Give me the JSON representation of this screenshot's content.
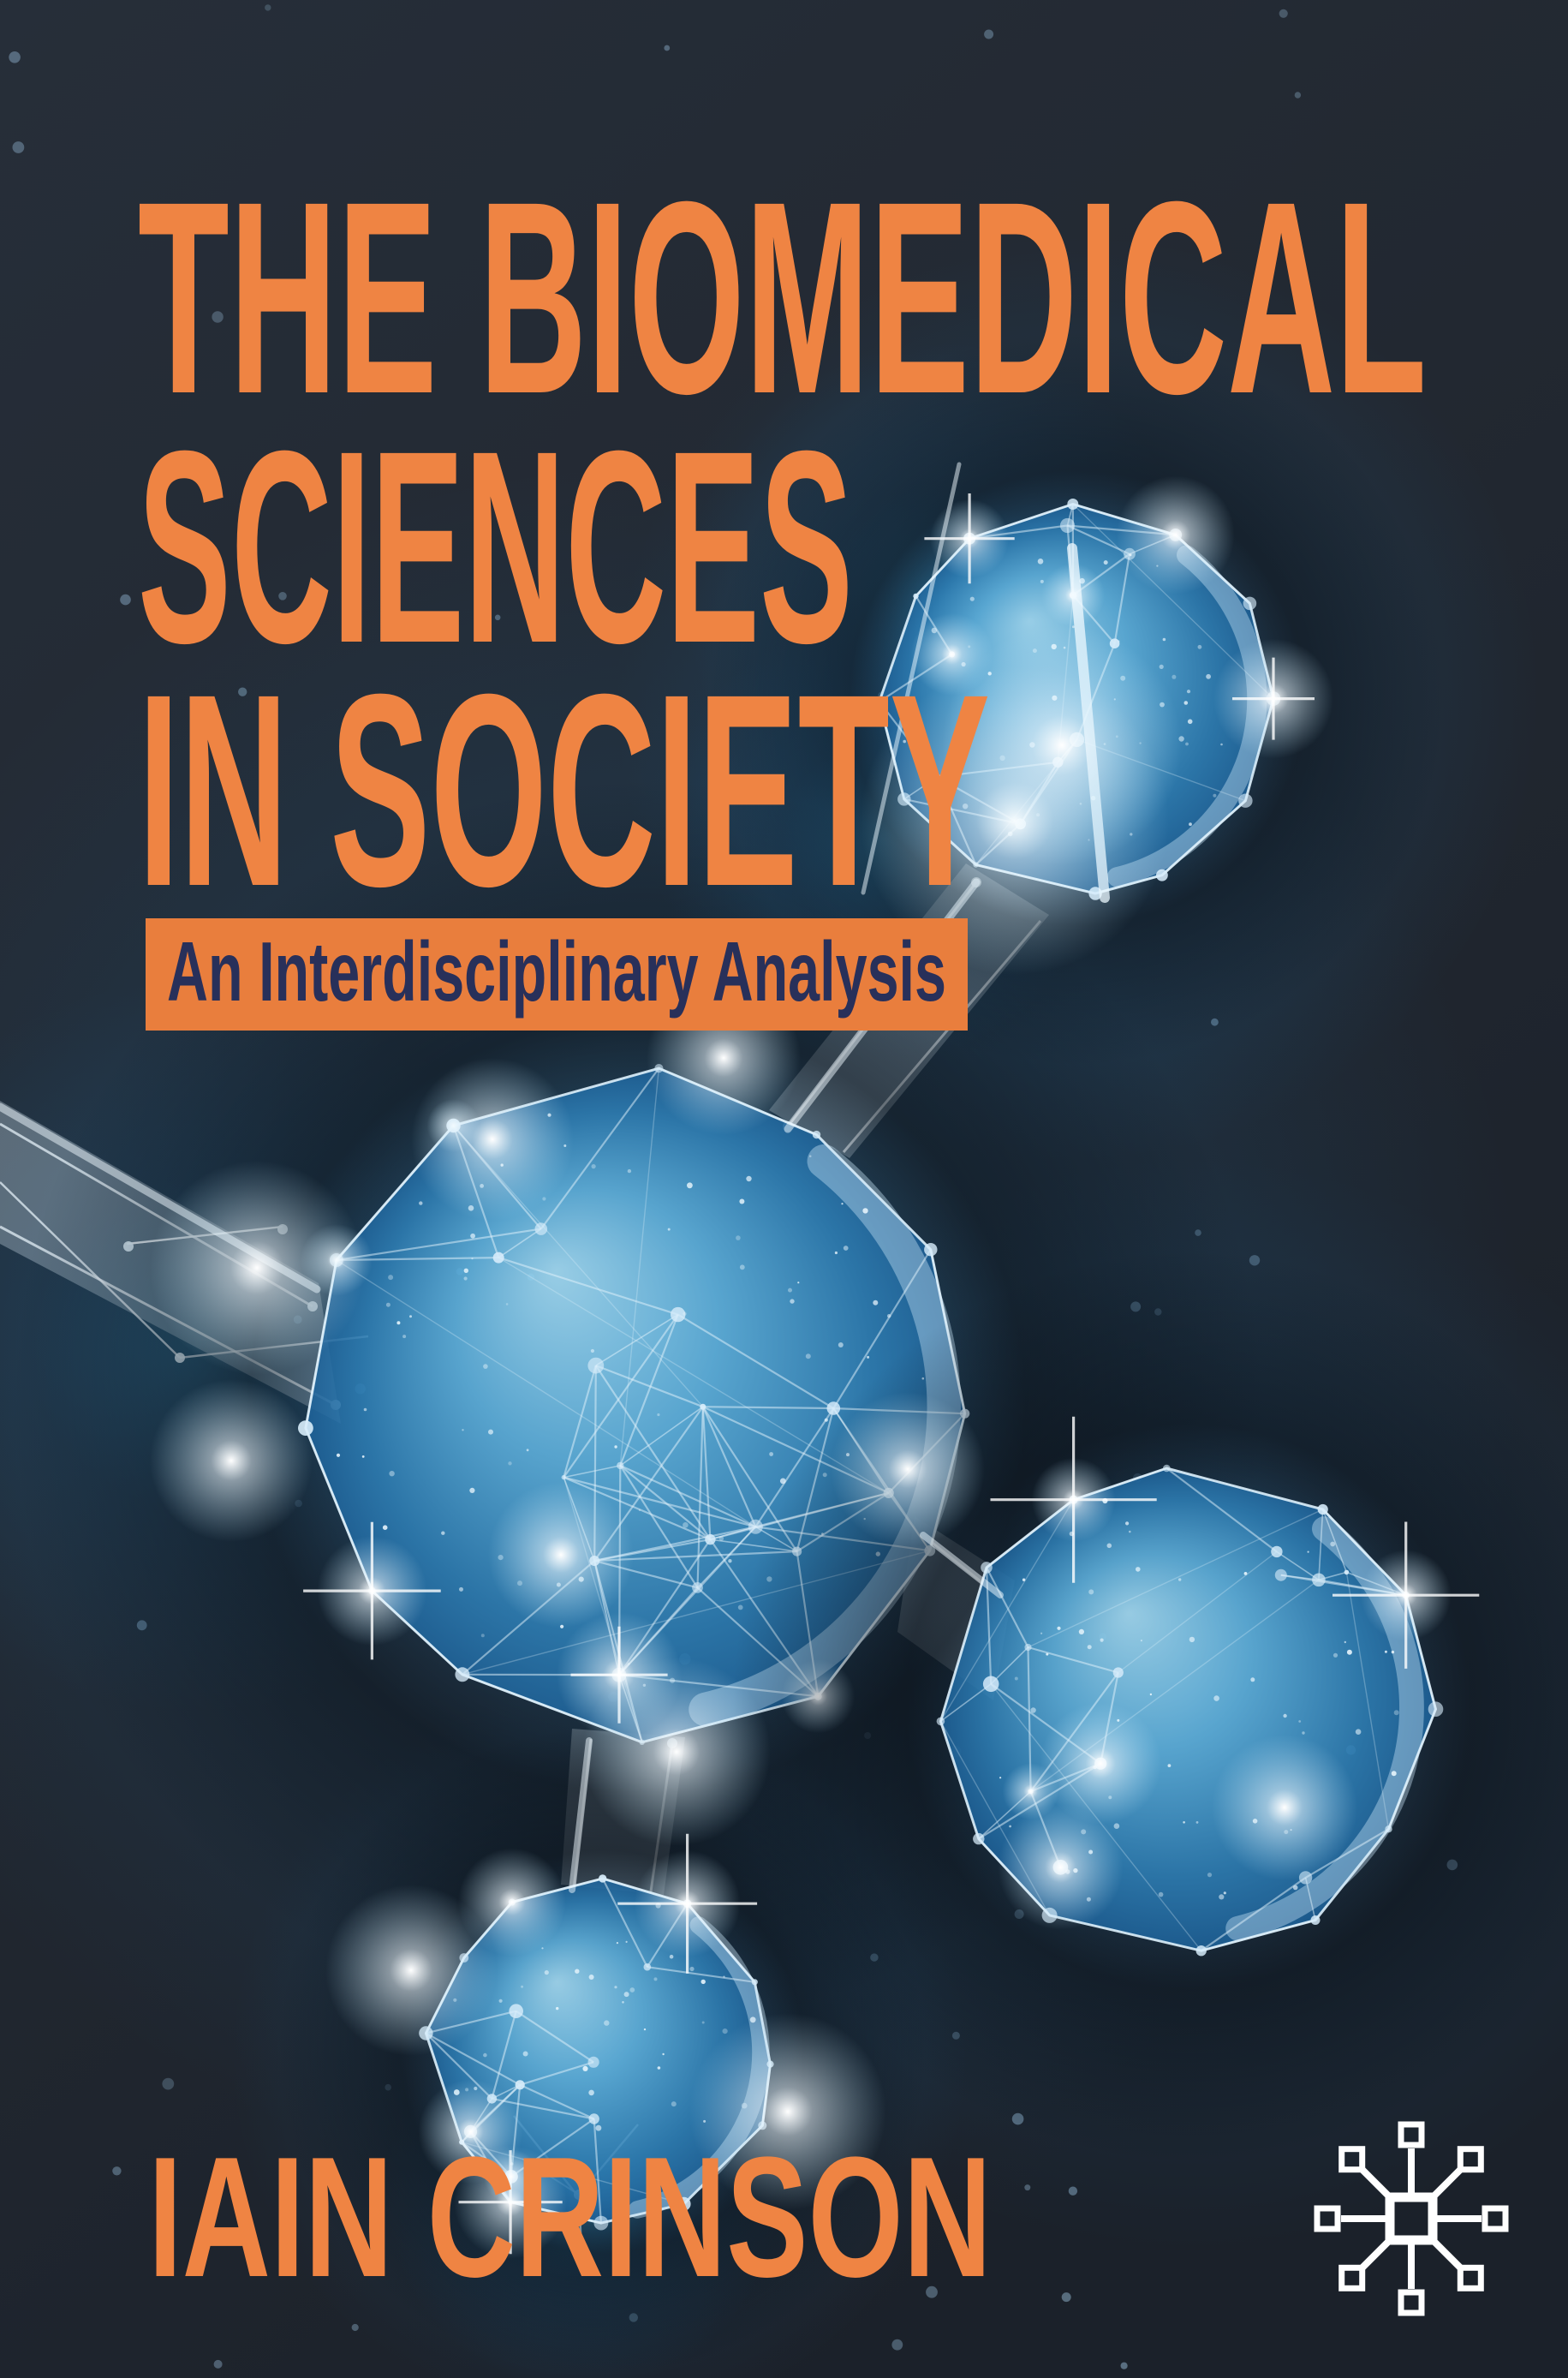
{
  "cover": {
    "title_lines": [
      "THE BIOMEDICAL",
      "SCIENCES",
      "IN SOCIETY"
    ],
    "subtitle": "An Interdisciplinary Analysis",
    "author": "IAIN CRINSON"
  },
  "colors": {
    "background_top": "#262E39",
    "background_mid": "#222831",
    "background_bottom": "#1B212A",
    "title": "#EF8443",
    "subtitle_box": "#E97E3D",
    "subtitle_text": "#28305A",
    "author": "#EF8443",
    "glow_blue": "#2F9FD8",
    "sphere_light": "#A6DCF4",
    "sphere_dark": "#1D6097",
    "wire_line": "#E3F3FC",
    "star": "#5D7386",
    "logo": "#FFFFFF"
  },
  "illustration": {
    "name": "glowing-low-poly-molecule-network",
    "element": "four wireframe spheres linked by translucent ribbons with lens flares and star dots"
  },
  "logo": {
    "icon": "network-hub-icon"
  }
}
